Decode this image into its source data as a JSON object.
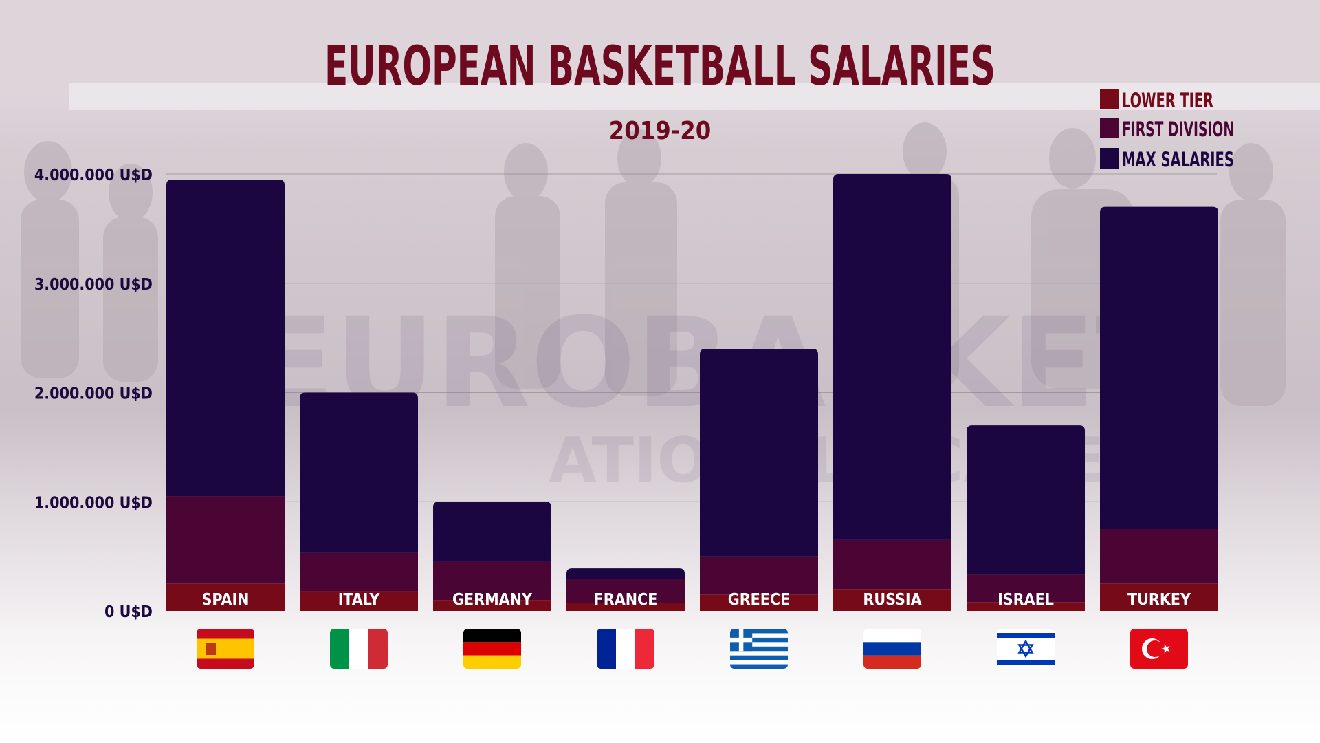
{
  "chart_data": {
    "type": "bar",
    "stacked": true,
    "title": "EUROPEAN BASKETBALL SALARIES",
    "subtitle": "2019-20",
    "categories": [
      "SPAIN",
      "ITALY",
      "GERMANY",
      "FRANCE",
      "GREECE",
      "RUSSIA",
      "ISRAEL",
      "TURKEY"
    ],
    "series": [
      {
        "name": "LOWER TIER",
        "values": [
          250000,
          180000,
          100000,
          70000,
          150000,
          200000,
          80000,
          250000
        ]
      },
      {
        "name": "FIRST DIVISION",
        "values": [
          800000,
          350000,
          350000,
          220000,
          350000,
          450000,
          250000,
          500000
        ]
      },
      {
        "name": "MAX SALARIES",
        "values": [
          2900000,
          1470000,
          550000,
          100000,
          1900000,
          3350000,
          1370000,
          2950000
        ]
      }
    ],
    "totals": [
      3950000,
      2000000,
      1000000,
      390000,
      2400000,
      4000000,
      1700000,
      3700000
    ],
    "yticks": [
      {
        "value": 0,
        "label": "0 U$D"
      },
      {
        "value": 1000000,
        "label": "1.000.000 U$D"
      },
      {
        "value": 2000000,
        "label": "2.000.000 U$D"
      },
      {
        "value": 3000000,
        "label": "3.000.000 U$D"
      },
      {
        "value": 4000000,
        "label": "4.000.000 U$D"
      }
    ],
    "ylim": [
      0,
      4000000
    ],
    "grid": true,
    "legend_position": "top-right",
    "colors": {
      "LOWER TIER": "#770a19",
      "FIRST DIVISION": "#4a0535",
      "MAX SALARIES": "#1b0642",
      "title": "#6d0a1f",
      "axis_text": "#1c0a3e",
      "label_text": "#ffffff"
    }
  },
  "flags": [
    {
      "country": "SPAIN",
      "icon": "spain-flag-icon"
    },
    {
      "country": "ITALY",
      "icon": "italy-flag-icon"
    },
    {
      "country": "GERMANY",
      "icon": "germany-flag-icon"
    },
    {
      "country": "FRANCE",
      "icon": "france-flag-icon"
    },
    {
      "country": "GREECE",
      "icon": "greece-flag-icon"
    },
    {
      "country": "RUSSIA",
      "icon": "russia-flag-icon"
    },
    {
      "country": "ISRAEL",
      "icon": "israel-flag-icon"
    },
    {
      "country": "TURKEY",
      "icon": "turkey-flag-icon"
    }
  ]
}
